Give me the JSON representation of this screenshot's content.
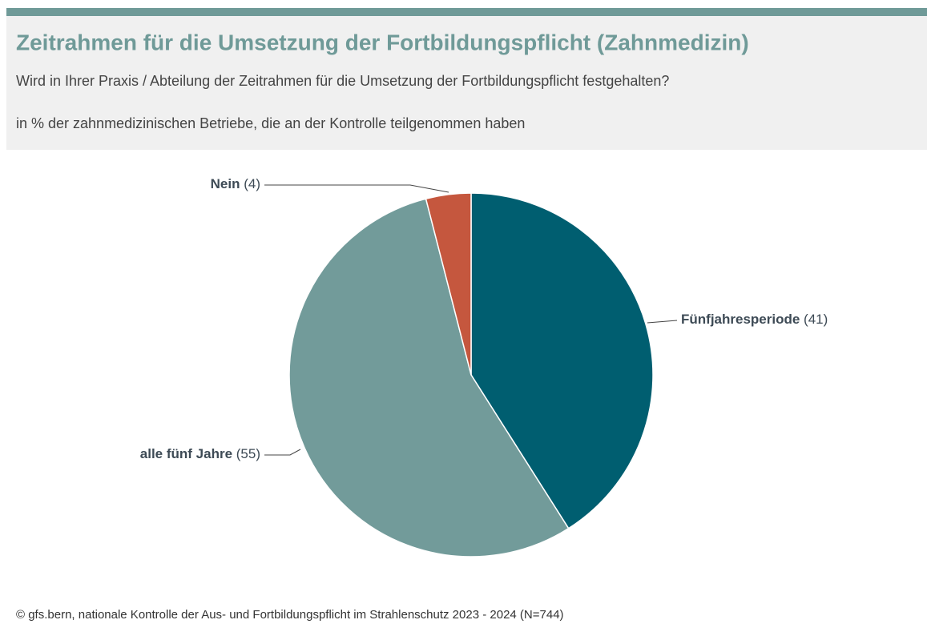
{
  "chart_data": {
    "type": "pie",
    "title": "Zeitrahmen für die Umsetzung der Fortbildungspflicht (Zahnmedizin)",
    "subtitle": "Wird in Ihrer Praxis / Abteilung der Zeitrahmen für die Umsetzung der Fortbildungspflicht festgehalten?",
    "note": "in % der zahnmedizinischen Betriebe, die an der Kontrolle teilgenommen haben",
    "source": "© gfs.bern, nationale Kontrolle der Aus- und Fortbildungspflicht im Strahlenschutz 2023 - 2024 (N=744)",
    "categories": [
      "Fünfjahresperiode",
      "alle fünf Jahre",
      "Nein"
    ],
    "values": [
      41,
      55,
      4
    ],
    "value_labels": [
      "(41)",
      "(55)",
      "(4)"
    ],
    "colors": [
      "#005e70",
      "#729b9a",
      "#c5573e"
    ]
  }
}
